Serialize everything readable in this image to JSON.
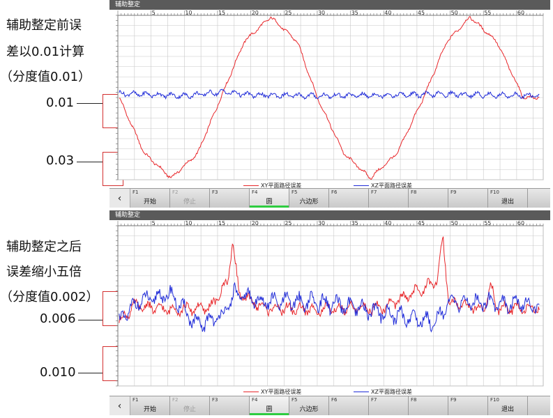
{
  "annotations": {
    "top_line1": "辅助整定前误",
    "top_line2": "差以0.01计算",
    "top_line3": "（分度值0.01）",
    "top_mark1": "0.01",
    "top_mark2": "0.03",
    "bottom_line1": "辅助整定之后",
    "bottom_line2": "误差缩小五倍",
    "bottom_line3": "（分度值0.002）",
    "bottom_mark1": "0.006",
    "bottom_mark2": "0.010"
  },
  "panels": [
    {
      "title": "辅助整定",
      "legend": [
        "XY平面路径误差",
        "XZ平面路径误差"
      ],
      "softkeys": [
        {
          "num": "F1",
          "label": "开始",
          "state": "normal"
        },
        {
          "num": "F2",
          "label": "停止",
          "state": "disabled"
        },
        {
          "num": "F3",
          "label": "",
          "state": "normal"
        },
        {
          "num": "F4",
          "label": "圆",
          "state": "active"
        },
        {
          "num": "F5",
          "label": "六边形",
          "state": "normal"
        },
        {
          "num": "F6",
          "label": "",
          "state": "normal"
        },
        {
          "num": "F7",
          "label": "",
          "state": "normal"
        },
        {
          "num": "F8",
          "label": "",
          "state": "normal"
        },
        {
          "num": "F9",
          "label": "",
          "state": "normal"
        },
        {
          "num": "F10",
          "label": "退出",
          "state": "normal"
        }
      ]
    },
    {
      "title": "辅助整定",
      "legend": [
        "XY平面路径误差",
        "XZ平面路径误差"
      ],
      "softkeys": [
        {
          "num": "F1",
          "label": "开始",
          "state": "normal"
        },
        {
          "num": "F2",
          "label": "停止",
          "state": "disabled"
        },
        {
          "num": "F3",
          "label": "",
          "state": "normal"
        },
        {
          "num": "F4",
          "label": "圆",
          "state": "active"
        },
        {
          "num": "F5",
          "label": "六边形",
          "state": "normal"
        },
        {
          "num": "F6",
          "label": "",
          "state": "normal"
        },
        {
          "num": "F7",
          "label": "",
          "state": "normal"
        },
        {
          "num": "F8",
          "label": "",
          "state": "normal"
        },
        {
          "num": "F9",
          "label": "",
          "state": "normal"
        },
        {
          "num": "F10",
          "label": "退出",
          "state": "normal"
        }
      ]
    }
  ],
  "colors": {
    "xy": "#e8262a",
    "xz": "#1f2bd8",
    "grid": "#c8c8c8",
    "highlight_box": "#d32f2f",
    "active_key": "#2ecc40"
  },
  "chart_data": [
    {
      "type": "line",
      "x_ticks": [
        5,
        10,
        15,
        20,
        25,
        30,
        35,
        40,
        45,
        50,
        55,
        60
      ],
      "xlim": [
        0,
        64
      ],
      "ylim": [
        -1,
        1
      ],
      "series": [
        {
          "name": "XY平面路径误差",
          "x": [
            0.2,
            4,
            8,
            12,
            15.5,
            19,
            23,
            27,
            30,
            34,
            38,
            42,
            46,
            49.5,
            53,
            57,
            61,
            63.4
          ],
          "values": [
            0,
            -0.68,
            -0.98,
            -0.68,
            0,
            0.68,
            0.98,
            0.68,
            0,
            -0.68,
            -0.98,
            -0.68,
            0,
            0.68,
            0.98,
            0.68,
            0,
            0
          ]
        },
        {
          "name": "XZ平面路径误差",
          "x": [
            0.2,
            10,
            16,
            20,
            30,
            40,
            50,
            63.4
          ],
          "values": [
            0.05,
            0.02,
            0.07,
            0.03,
            0.02,
            0.03,
            0.04,
            0.02
          ]
        }
      ]
    },
    {
      "type": "line",
      "x_ticks": [
        5,
        10,
        15,
        20,
        25,
        30,
        35,
        40,
        45,
        50,
        55,
        60
      ],
      "xlim": [
        0,
        64
      ],
      "ylim": [
        -1,
        1
      ],
      "series": [
        {
          "name": "XY平面路径误差",
          "x": [
            0.2,
            2.5,
            8,
            14,
            16.5,
            17.3,
            18.2,
            22,
            30,
            40,
            48,
            48.9,
            49.8,
            55,
            56.1,
            57,
            63.4
          ],
          "values": [
            -0.2,
            0.0,
            -0.05,
            -0.02,
            0.3,
            0.82,
            0.15,
            -0.03,
            -0.05,
            -0.02,
            0.3,
            0.86,
            0.05,
            -0.05,
            0.26,
            -0.02,
            -0.03
          ]
        },
        {
          "name": "XZ平面路径误差",
          "x": [
            0.2,
            3,
            8,
            12,
            16,
            17.5,
            22,
            30,
            38,
            47.5,
            50,
            56,
            63.4
          ],
          "values": [
            -0.2,
            0.05,
            0.14,
            -0.25,
            -0.1,
            0.15,
            0.05,
            0.05,
            -0.06,
            -0.2,
            0.04,
            0.05,
            0.0
          ]
        }
      ]
    }
  ]
}
